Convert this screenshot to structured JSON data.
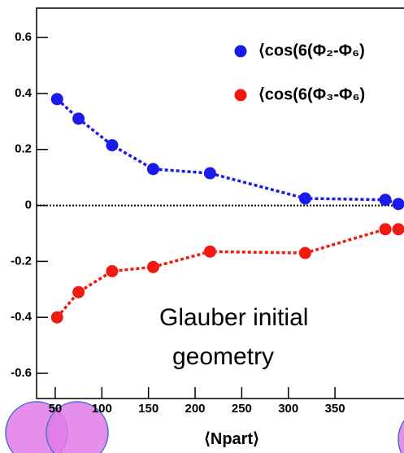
{
  "chart_data": {
    "type": "line",
    "xlabel": "⟨Npart⟩",
    "annotation": [
      "Glauber initial",
      "geometry"
    ],
    "series": [
      {
        "name": "⟨cos(6(Φ₂-Φ₆)",
        "color": "#1a1aeb",
        "x": [
          52,
          75,
          111,
          155,
          216,
          318,
          404,
          418
        ],
        "values": [
          0.38,
          0.31,
          0.215,
          0.13,
          0.115,
          0.025,
          0.02,
          0.005
        ]
      },
      {
        "name": "⟨cos(6(Φ₃-Φ₆)",
        "color": "#f01a10",
        "x": [
          52,
          75,
          111,
          155,
          216,
          318,
          404,
          418
        ],
        "values": [
          -0.4,
          -0.31,
          -0.235,
          -0.22,
          -0.165,
          -0.17,
          -0.085,
          -0.085
        ]
      }
    ],
    "xlim": [
      30,
      424
    ],
    "ylim": [
      -0.69,
      0.705
    ],
    "xticks": [
      50,
      100,
      150,
      200,
      250,
      300,
      350
    ],
    "yticks": [
      0.6,
      0.4,
      0.2,
      0,
      -0.2,
      -0.4,
      -0.6
    ]
  }
}
